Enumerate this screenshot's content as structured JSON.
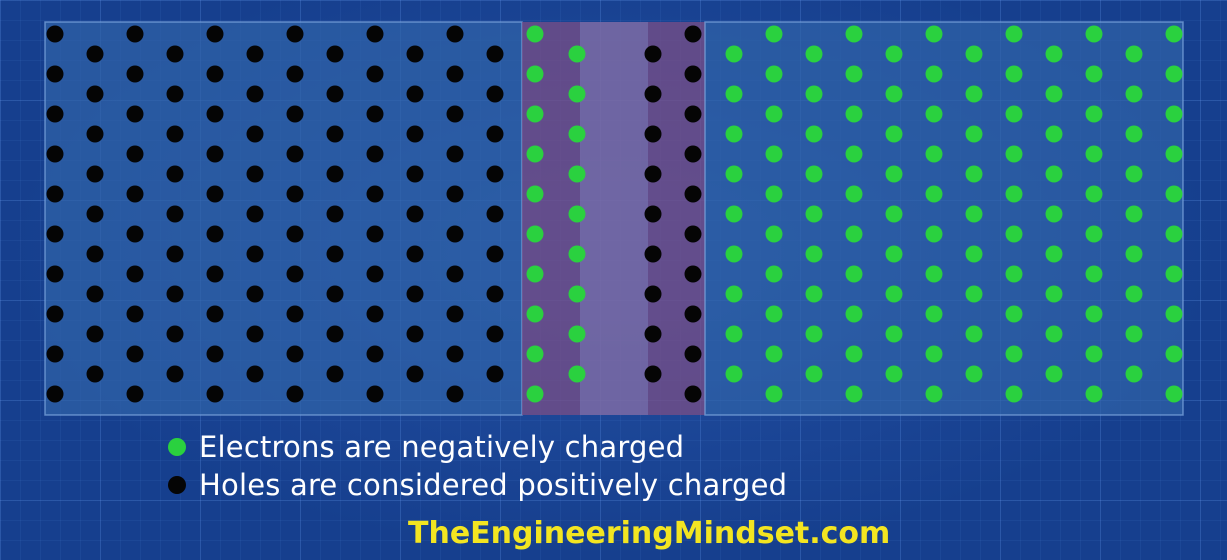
{
  "colors": {
    "electron": "#2ad13f",
    "hole": "#050505",
    "p_region": "#2f62a8",
    "depletion_region": "#7a4e86",
    "n_region": "#2f62a8",
    "brand": "#f3e521"
  },
  "diagram": {
    "p_type_holes_region": {
      "dot": "hole"
    },
    "depletion_region": {
      "left_column": "electron",
      "right_column": "hole"
    },
    "n_type_electrons_region": {
      "dot": "electron"
    }
  },
  "legend": {
    "electron": {
      "label": "Electrons are negatively charged",
      "dot": "electron"
    },
    "hole": {
      "label": "Holes are considered positively charged",
      "dot": "hole"
    }
  },
  "watermark": "TheEngineeringMindset.com"
}
